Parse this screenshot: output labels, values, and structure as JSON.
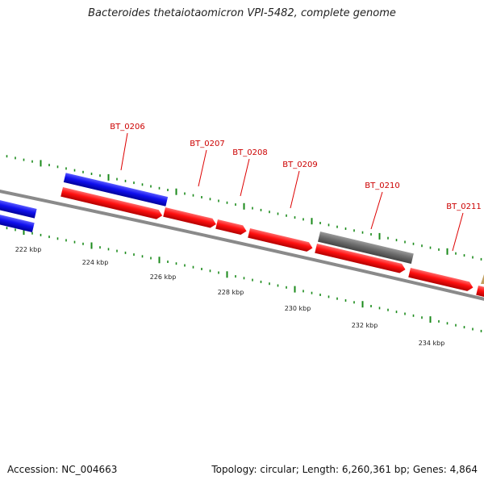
{
  "title": "Bacteroides thetaiotaomicron VPI-5482, complete genome",
  "footer": {
    "accession": "Accession: NC_004663",
    "summary": "Topology: circular; Length: 6,260,361 bp; Genes: 4,864"
  },
  "colors": {
    "forward_gene": "#ff1010",
    "reverse_gene": "#1010ee",
    "other_gene": "#6e6e6e",
    "backbone": "#888888",
    "ticks": "#1a8a1a",
    "labels": "#cc0000"
  },
  "scale": {
    "unit": "kbp",
    "labels": [
      "222 kbp",
      "224 kbp",
      "226 kbp",
      "228 kbp",
      "230 kbp",
      "232 kbp",
      "234 kbp"
    ]
  },
  "genes": {
    "labels": [
      "BT_0206",
      "BT_0207",
      "BT_0208",
      "BT_0209",
      "BT_0210",
      "BT_0211"
    ]
  }
}
